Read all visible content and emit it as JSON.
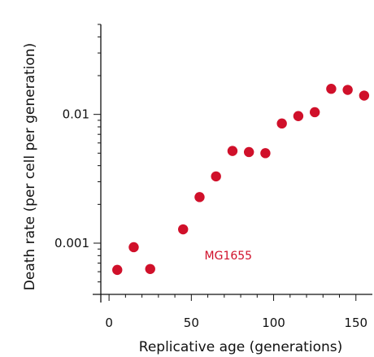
{
  "chart_data": {
    "type": "scatter",
    "title": "",
    "xlabel": "Replicative age (generations)",
    "ylabel": "Death rate (per cell per generation)",
    "xlim": [
      -5,
      160
    ],
    "ylim": [
      0.0004,
      0.05
    ],
    "yscale": "log",
    "grid": false,
    "x_ticks": [
      0,
      50,
      100,
      150
    ],
    "x_tick_labels": [
      "0",
      "50",
      "100",
      "150"
    ],
    "y_ticks": [
      0.001,
      0.01
    ],
    "y_tick_labels": [
      "0.001",
      "0.01"
    ],
    "annotation": {
      "text": "MG1655",
      "x": 58,
      "y": 0.00075,
      "color": "#d0102a"
    },
    "series": [
      {
        "color": "#d0102a",
        "points": [
          {
            "x": 5,
            "y": 0.00062
          },
          {
            "x": 15,
            "y": 0.00093
          },
          {
            "x": 25,
            "y": 0.00063
          },
          {
            "x": 45,
            "y": 0.00128
          },
          {
            "x": 55,
            "y": 0.00228
          },
          {
            "x": 65,
            "y": 0.0033
          },
          {
            "x": 75,
            "y": 0.0052
          },
          {
            "x": 85,
            "y": 0.0051
          },
          {
            "x": 95,
            "y": 0.005
          },
          {
            "x": 105,
            "y": 0.0085
          },
          {
            "x": 115,
            "y": 0.0097
          },
          {
            "x": 125,
            "y": 0.0104
          },
          {
            "x": 135,
            "y": 0.0158
          },
          {
            "x": 145,
            "y": 0.0155
          },
          {
            "x": 155,
            "y": 0.014
          }
        ]
      }
    ]
  }
}
